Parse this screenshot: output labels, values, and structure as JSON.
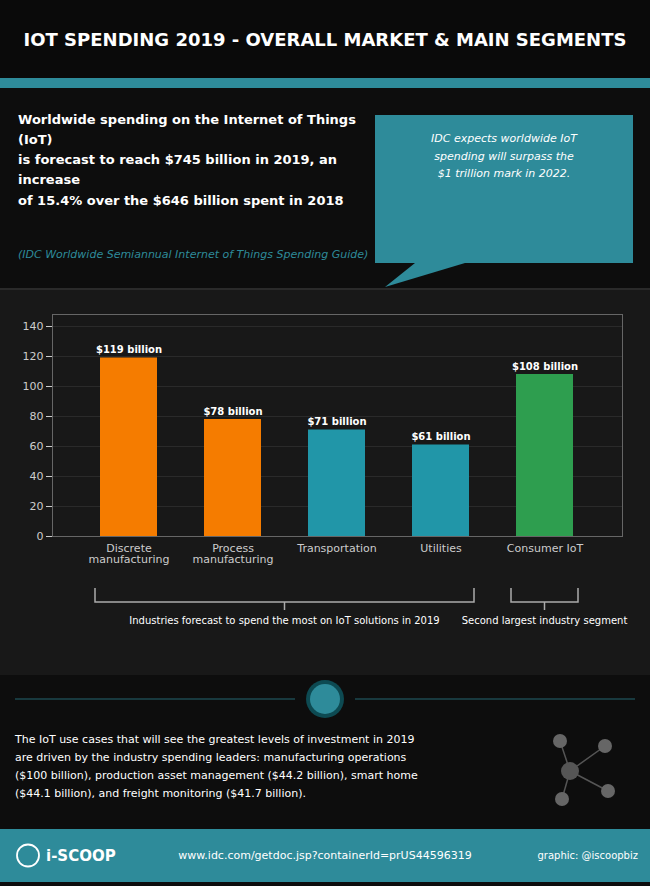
{
  "chart_data": {
    "type": "bar",
    "title": "IOT SPENDING 2019 - OVERALL MARKET & MAIN SEGMENTS",
    "subtitle": "Worldwide spending on the Internet of Things (IoT)\nis forecast to reach $745 billion in 2019, an increase\nof 15.4% over the $646 billion spent in 2018",
    "categories": [
      "Discrete\nmanufacturing",
      "Process\nmanufacturing",
      "Transportation",
      "Utilities",
      "Consumer IoT"
    ],
    "values": [
      119,
      78,
      71,
      61,
      108
    ],
    "value_labels": [
      "$119 billion",
      "$78 billion",
      "$71 billion",
      "$61 billion",
      "$108 billion"
    ],
    "data_labels": true,
    "colors": [
      "#f57c00",
      "#f57c00",
      "#2196a8",
      "#2196a8",
      "#2e9e4f"
    ],
    "ylim": [
      0,
      148
    ],
    "yticks": [
      0,
      20,
      40,
      60,
      80,
      100,
      120,
      140
    ],
    "grid": true,
    "annotations": [
      {
        "text": "(IDC Worldwide Semiannual Internet of Things Spending Guide)"
      },
      {
        "text": "IDC expects worldwide IoT\nspending will surpass the\n$1 trillion mark in 2022."
      },
      {
        "text": "Industries forecast to spend the most on IoT solutions in 2019",
        "categories": [
          "Discrete\nmanufacturing",
          "Process\nmanufacturing",
          "Transportation",
          "Utilities"
        ]
      },
      {
        "text": "Second largest industry segment",
        "categories": [
          "Consumer IoT"
        ]
      },
      {
        "text": "The IoT use cases that will see the greatest levels of investment in 2019\nare driven by the industry spending leaders: manufacturing operations\n($100 billion), production asset management ($44.2 billion), smart home\n($44.1 billion), and freight monitoring ($41.7 billion)."
      },
      {
        "text": "i-SCOOP"
      },
      {
        "text": "www.idc.com/getdoc.jsp?containerId=prUS44596319"
      },
      {
        "text": "graphic: @iscoopbiz"
      }
    ]
  }
}
